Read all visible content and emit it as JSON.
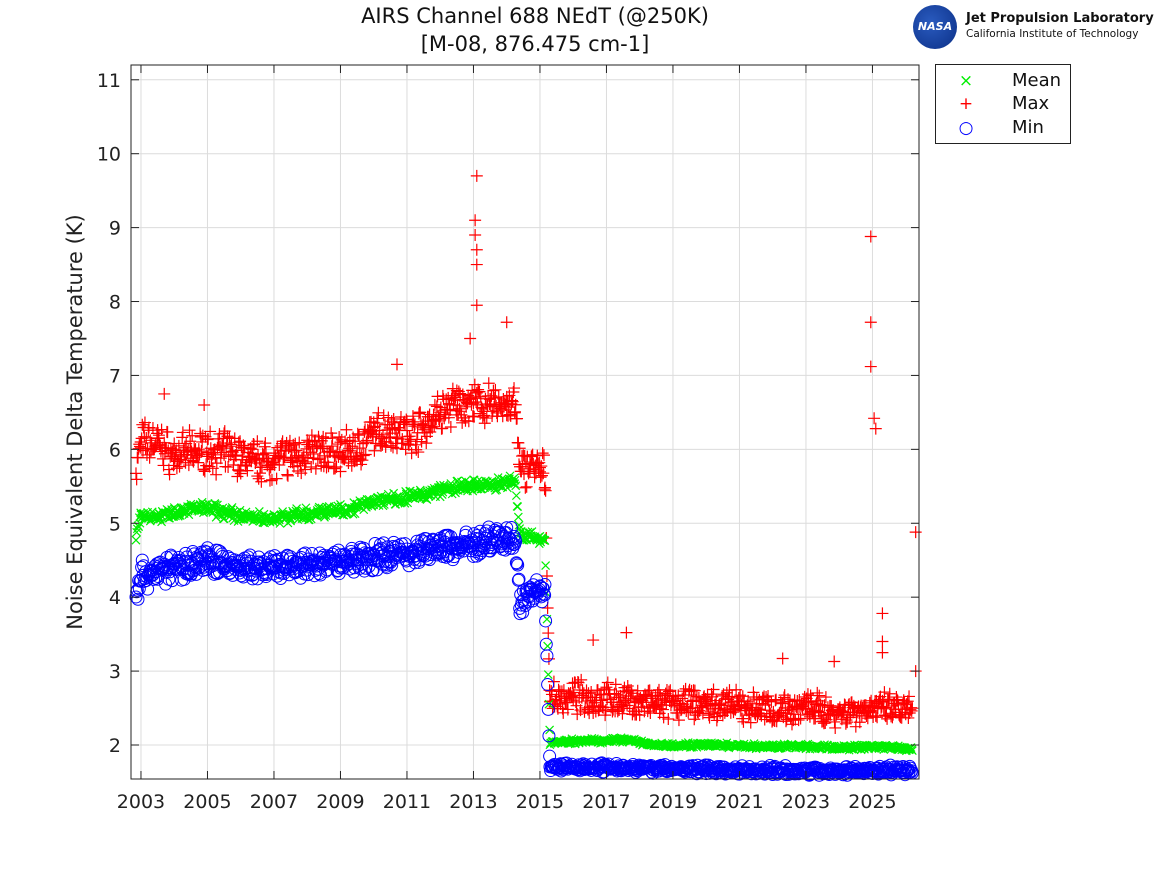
{
  "chart_data": {
    "type": "scatter",
    "title": "AIRS Channel 688 NEdT (@250K)",
    "subtitle": "[M-08, 876.475 cm-1]",
    "xlabel": "",
    "ylabel": "Noise Equivalent Delta Temperature (K)",
    "xlim": [
      2002.7,
      2026.4
    ],
    "ylim": [
      1.54,
      11.2
    ],
    "xticks": [
      2003,
      2005,
      2007,
      2009,
      2011,
      2013,
      2015,
      2017,
      2019,
      2021,
      2023,
      2025
    ],
    "yticks": [
      2,
      3,
      4,
      5,
      6,
      7,
      8,
      9,
      10,
      11
    ],
    "grid": true,
    "legend_position": "outside-top-right",
    "x": [
      2002.85,
      2003.0,
      2003.5,
      2004.0,
      2004.5,
      2005.0,
      2005.5,
      2006.0,
      2006.5,
      2007.0,
      2007.5,
      2008.0,
      2008.5,
      2009.0,
      2009.5,
      2010.0,
      2010.5,
      2011.0,
      2011.5,
      2012.0,
      2012.5,
      2013.0,
      2013.5,
      2014.0,
      2014.25,
      2014.4,
      2014.7,
      2015.0,
      2015.15,
      2015.3,
      2016.0,
      2017.5,
      2018.5,
      2020.0,
      2021.5,
      2023.0,
      2024.0,
      2025.0,
      2026.2
    ],
    "series": [
      {
        "name": "Mean",
        "marker": "x",
        "color": "#00ee00",
        "values": [
          4.8,
          5.1,
          5.1,
          5.15,
          5.2,
          5.2,
          5.15,
          5.1,
          5.07,
          5.07,
          5.1,
          5.12,
          5.15,
          5.18,
          5.22,
          5.3,
          5.33,
          5.35,
          5.38,
          5.45,
          5.48,
          5.5,
          5.52,
          5.55,
          5.58,
          4.85,
          4.8,
          4.8,
          4.78,
          2.03,
          2.05,
          2.07,
          2.0,
          2.0,
          1.98,
          1.98,
          1.96,
          1.98,
          1.95
        ],
        "spread": [
          0.1,
          0.04
        ]
      },
      {
        "name": "Max",
        "marker": "+",
        "color": "#ff0000",
        "values": [
          5.7,
          6.1,
          6.1,
          5.9,
          5.95,
          6.0,
          5.95,
          5.9,
          5.85,
          5.85,
          5.9,
          5.95,
          5.95,
          5.95,
          6.0,
          6.2,
          6.3,
          6.2,
          6.3,
          6.5,
          6.6,
          6.6,
          6.6,
          6.6,
          6.6,
          5.7,
          5.8,
          5.7,
          5.65,
          2.6,
          2.65,
          2.6,
          2.55,
          2.55,
          2.5,
          2.5,
          2.45,
          2.5,
          2.45
        ],
        "spread": [
          0.32,
          0.25
        ],
        "outliers": [
          [
            2013.1,
            9.7
          ],
          [
            2013.05,
            9.1
          ],
          [
            2013.05,
            8.9
          ],
          [
            2013.1,
            8.7
          ],
          [
            2013.1,
            8.5
          ],
          [
            2013.1,
            7.95
          ],
          [
            2014.0,
            7.72
          ],
          [
            2012.9,
            7.5
          ],
          [
            2024.95,
            8.88
          ],
          [
            2024.95,
            7.72
          ],
          [
            2024.95,
            7.12
          ],
          [
            2025.05,
            6.42
          ],
          [
            2025.1,
            6.28
          ],
          [
            2026.3,
            4.88
          ],
          [
            2025.3,
            3.78
          ],
          [
            2025.3,
            3.4
          ],
          [
            2025.3,
            3.25
          ],
          [
            2016.6,
            3.42
          ],
          [
            2017.6,
            3.52
          ],
          [
            2026.3,
            3.0
          ],
          [
            2022.3,
            3.17
          ],
          [
            2023.85,
            3.13
          ],
          [
            2003.7,
            6.75
          ],
          [
            2004.9,
            6.6
          ],
          [
            2010.7,
            7.15
          ]
        ]
      },
      {
        "name": "Min",
        "marker": "o",
        "color": "#0000ff",
        "values": [
          4.0,
          4.3,
          4.35,
          4.4,
          4.45,
          4.5,
          4.45,
          4.4,
          4.38,
          4.38,
          4.4,
          4.42,
          4.45,
          4.5,
          4.52,
          4.55,
          4.58,
          4.6,
          4.63,
          4.67,
          4.7,
          4.72,
          4.75,
          4.78,
          4.78,
          3.9,
          4.1,
          4.1,
          4.05,
          1.7,
          1.7,
          1.7,
          1.68,
          1.67,
          1.66,
          1.65,
          1.65,
          1.66,
          1.66
        ],
        "spread": [
          0.22,
          0.07
        ]
      }
    ]
  },
  "logo": {
    "agency": "NASA",
    "line1": "Jet Propulsion Laboratory",
    "line2": "California Institute of Technology"
  },
  "legend": {
    "items": [
      {
        "label": "Mean",
        "symbol": "×",
        "color": "#00ee00"
      },
      {
        "label": "Max",
        "symbol": "+",
        "color": "#ff0000"
      },
      {
        "label": "Min",
        "symbol": "○",
        "color": "#0000ff"
      }
    ]
  }
}
